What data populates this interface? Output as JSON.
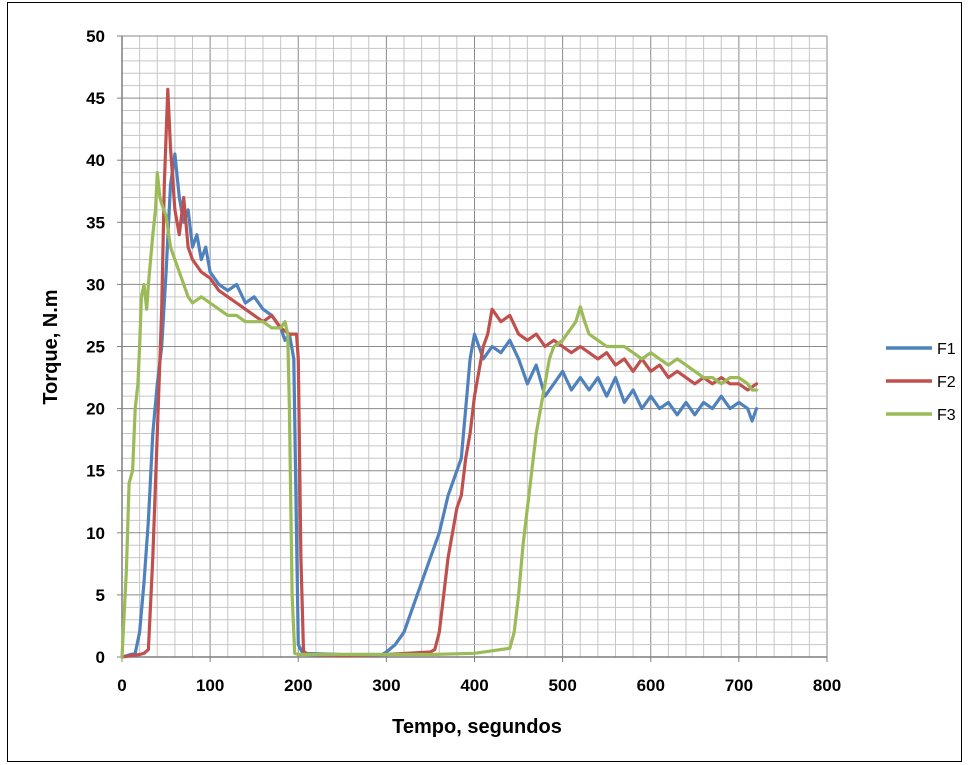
{
  "chart_data": {
    "type": "line",
    "title": "",
    "xlabel": "Tempo, segundos",
    "ylabel": "Torque, N.m",
    "xlim": [
      0,
      800
    ],
    "ylim": [
      0,
      50
    ],
    "x_ticks": [
      "0",
      "100",
      "200",
      "300",
      "400",
      "500",
      "600",
      "700",
      "800"
    ],
    "y_ticks": [
      "0",
      "5",
      "10",
      "15",
      "20",
      "25",
      "30",
      "35",
      "40",
      "45",
      "50"
    ],
    "x_major_step": 100,
    "y_major_step": 5,
    "x_minor_step": 20,
    "y_minor_step": 1,
    "grid": true,
    "legend_position": "right",
    "series": [
      {
        "name": "F1",
        "color": "#4F81BD",
        "points": [
          [
            0,
            0
          ],
          [
            15,
            0.3
          ],
          [
            20,
            2
          ],
          [
            25,
            6
          ],
          [
            30,
            11
          ],
          [
            35,
            18
          ],
          [
            40,
            22
          ],
          [
            45,
            25
          ],
          [
            50,
            31
          ],
          [
            55,
            38
          ],
          [
            60,
            40.5
          ],
          [
            65,
            37
          ],
          [
            70,
            35
          ],
          [
            75,
            36
          ],
          [
            80,
            33
          ],
          [
            85,
            34
          ],
          [
            90,
            32
          ],
          [
            95,
            33
          ],
          [
            100,
            31
          ],
          [
            110,
            30
          ],
          [
            120,
            29.5
          ],
          [
            130,
            30
          ],
          [
            140,
            28.5
          ],
          [
            150,
            29
          ],
          [
            160,
            28
          ],
          [
            170,
            27.5
          ],
          [
            180,
            26.5
          ],
          [
            185,
            25.5
          ],
          [
            190,
            26
          ],
          [
            195,
            24
          ],
          [
            198,
            10
          ],
          [
            200,
            1
          ],
          [
            205,
            0.3
          ],
          [
            250,
            0.2
          ],
          [
            295,
            0.2
          ],
          [
            300,
            0.4
          ],
          [
            310,
            1
          ],
          [
            320,
            2
          ],
          [
            330,
            4
          ],
          [
            340,
            6
          ],
          [
            350,
            8
          ],
          [
            360,
            10
          ],
          [
            370,
            13
          ],
          [
            380,
            15
          ],
          [
            385,
            16
          ],
          [
            390,
            20
          ],
          [
            395,
            24
          ],
          [
            400,
            26
          ],
          [
            405,
            25
          ],
          [
            410,
            24
          ],
          [
            420,
            25
          ],
          [
            430,
            24.5
          ],
          [
            440,
            25.5
          ],
          [
            450,
            24
          ],
          [
            460,
            22
          ],
          [
            470,
            23.5
          ],
          [
            480,
            21
          ],
          [
            490,
            22
          ],
          [
            500,
            23
          ],
          [
            510,
            21.5
          ],
          [
            520,
            22.5
          ],
          [
            530,
            21.5
          ],
          [
            540,
            22.5
          ],
          [
            550,
            21
          ],
          [
            560,
            22.5
          ],
          [
            570,
            20.5
          ],
          [
            580,
            21.5
          ],
          [
            590,
            20
          ],
          [
            600,
            21
          ],
          [
            610,
            20
          ],
          [
            620,
            20.5
          ],
          [
            630,
            19.5
          ],
          [
            640,
            20.5
          ],
          [
            650,
            19.5
          ],
          [
            660,
            20.5
          ],
          [
            670,
            20
          ],
          [
            680,
            21
          ],
          [
            690,
            20
          ],
          [
            700,
            20.5
          ],
          [
            710,
            20
          ],
          [
            715,
            19
          ],
          [
            720,
            20
          ]
        ]
      },
      {
        "name": "F2",
        "color": "#C0504D",
        "points": [
          [
            0,
            0
          ],
          [
            20,
            0.2
          ],
          [
            25,
            0.3
          ],
          [
            30,
            0.6
          ],
          [
            35,
            8
          ],
          [
            40,
            18
          ],
          [
            45,
            28
          ],
          [
            48,
            38
          ],
          [
            50,
            42
          ],
          [
            52,
            45.7
          ],
          [
            55,
            41
          ],
          [
            60,
            36
          ],
          [
            65,
            34
          ],
          [
            70,
            37
          ],
          [
            75,
            33
          ],
          [
            80,
            32
          ],
          [
            90,
            31
          ],
          [
            100,
            30.5
          ],
          [
            110,
            29.5
          ],
          [
            120,
            29
          ],
          [
            130,
            28.5
          ],
          [
            140,
            28
          ],
          [
            150,
            27.5
          ],
          [
            160,
            27
          ],
          [
            170,
            27.5
          ],
          [
            180,
            26.5
          ],
          [
            190,
            26
          ],
          [
            195,
            26
          ],
          [
            198,
            26
          ],
          [
            200,
            24
          ],
          [
            203,
            8
          ],
          [
            206,
            0.5
          ],
          [
            210,
            0.2
          ],
          [
            250,
            0.1
          ],
          [
            300,
            0.2
          ],
          [
            350,
            0.4
          ],
          [
            355,
            0.6
          ],
          [
            360,
            2
          ],
          [
            365,
            5
          ],
          [
            370,
            8
          ],
          [
            375,
            10
          ],
          [
            380,
            12
          ],
          [
            385,
            13
          ],
          [
            390,
            16
          ],
          [
            395,
            18
          ],
          [
            400,
            21
          ],
          [
            405,
            23
          ],
          [
            410,
            25
          ],
          [
            415,
            26
          ],
          [
            420,
            28
          ],
          [
            430,
            27
          ],
          [
            440,
            27.5
          ],
          [
            450,
            26
          ],
          [
            460,
            25.5
          ],
          [
            470,
            26
          ],
          [
            480,
            25
          ],
          [
            490,
            25.5
          ],
          [
            500,
            25
          ],
          [
            510,
            24.5
          ],
          [
            520,
            25
          ],
          [
            530,
            24.5
          ],
          [
            540,
            24
          ],
          [
            550,
            24.5
          ],
          [
            560,
            23.5
          ],
          [
            570,
            24
          ],
          [
            580,
            23
          ],
          [
            590,
            24
          ],
          [
            600,
            23
          ],
          [
            610,
            23.5
          ],
          [
            620,
            22.5
          ],
          [
            630,
            23
          ],
          [
            640,
            22.5
          ],
          [
            650,
            22
          ],
          [
            660,
            22.5
          ],
          [
            670,
            22
          ],
          [
            680,
            22.5
          ],
          [
            690,
            22
          ],
          [
            700,
            22
          ],
          [
            710,
            21.5
          ],
          [
            720,
            22
          ]
        ]
      },
      {
        "name": "F3",
        "color": "#9BBB59",
        "points": [
          [
            0,
            0
          ],
          [
            5,
            7
          ],
          [
            8,
            14
          ],
          [
            12,
            15
          ],
          [
            15,
            20
          ],
          [
            18,
            22
          ],
          [
            20,
            25
          ],
          [
            22,
            29
          ],
          [
            25,
            30
          ],
          [
            28,
            28
          ],
          [
            30,
            30
          ],
          [
            35,
            34
          ],
          [
            38,
            36
          ],
          [
            40,
            39
          ],
          [
            43,
            37
          ],
          [
            45,
            36.5
          ],
          [
            50,
            35.5
          ],
          [
            55,
            33
          ],
          [
            60,
            32
          ],
          [
            65,
            31
          ],
          [
            70,
            30
          ],
          [
            75,
            29
          ],
          [
            80,
            28.5
          ],
          [
            90,
            29
          ],
          [
            100,
            28.5
          ],
          [
            110,
            28
          ],
          [
            120,
            27.5
          ],
          [
            130,
            27.5
          ],
          [
            140,
            27
          ],
          [
            150,
            27
          ],
          [
            160,
            27
          ],
          [
            170,
            26.5
          ],
          [
            180,
            26.5
          ],
          [
            185,
            27
          ],
          [
            188,
            26
          ],
          [
            190,
            20
          ],
          [
            193,
            5
          ],
          [
            196,
            0.3
          ],
          [
            200,
            0.2
          ],
          [
            250,
            0.2
          ],
          [
            300,
            0.2
          ],
          [
            350,
            0.2
          ],
          [
            400,
            0.3
          ],
          [
            420,
            0.5
          ],
          [
            440,
            0.7
          ],
          [
            445,
            2
          ],
          [
            450,
            5
          ],
          [
            455,
            9
          ],
          [
            460,
            12
          ],
          [
            465,
            15
          ],
          [
            470,
            18
          ],
          [
            480,
            22
          ],
          [
            485,
            24
          ],
          [
            490,
            25
          ],
          [
            500,
            25.5
          ],
          [
            505,
            26
          ],
          [
            510,
            26.5
          ],
          [
            515,
            27
          ],
          [
            520,
            28.2
          ],
          [
            525,
            27
          ],
          [
            530,
            26
          ],
          [
            540,
            25.5
          ],
          [
            550,
            25
          ],
          [
            560,
            25
          ],
          [
            570,
            25
          ],
          [
            580,
            24.5
          ],
          [
            590,
            24
          ],
          [
            600,
            24.5
          ],
          [
            610,
            24
          ],
          [
            620,
            23.5
          ],
          [
            630,
            24
          ],
          [
            640,
            23.5
          ],
          [
            650,
            23
          ],
          [
            660,
            22.5
          ],
          [
            670,
            22.5
          ],
          [
            680,
            22
          ],
          [
            690,
            22.5
          ],
          [
            700,
            22.5
          ],
          [
            710,
            22
          ],
          [
            715,
            21.5
          ],
          [
            720,
            21.5
          ]
        ]
      }
    ]
  }
}
